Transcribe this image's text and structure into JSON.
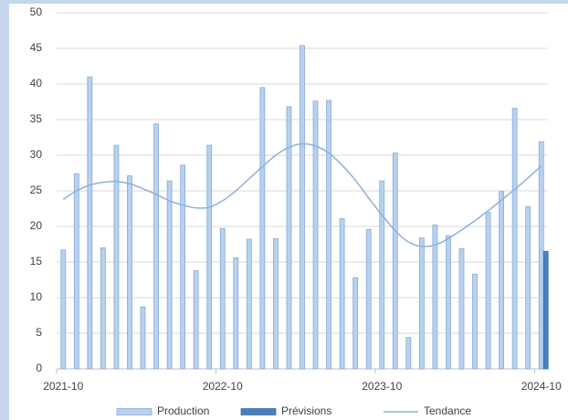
{
  "chart_data": {
    "type": "bar",
    "categories": [
      "2021-10",
      null,
      null,
      null,
      null,
      null,
      null,
      null,
      null,
      null,
      null,
      null,
      "2022-10",
      null,
      null,
      null,
      null,
      null,
      null,
      null,
      null,
      null,
      null,
      null,
      "2023-10",
      null,
      null,
      null,
      null,
      null,
      null,
      null,
      null,
      null,
      null,
      null,
      "2024-10"
    ],
    "series": [
      {
        "name": "Production",
        "color": "#b9d1ee",
        "stroke": "#86aad8",
        "kind": "bar",
        "values": [
          16.7,
          27.4,
          41,
          17,
          31.4,
          27.1,
          8.7,
          34.4,
          26.4,
          28.6,
          13.8,
          31.4,
          19.7,
          15.6,
          18.2,
          39.5,
          18.3,
          36.8,
          45.4,
          37.6,
          37.7,
          21.1,
          12.8,
          19.6,
          26.4,
          30.3,
          4.4,
          18.4,
          20.2,
          18.7,
          16.9,
          13.3,
          22.0,
          24.9,
          36.6,
          22.8,
          31.9
        ]
      },
      {
        "name": "Prévisions",
        "color": "#4a7fba",
        "stroke": "#3f71aa",
        "kind": "bar",
        "values": [
          null,
          null,
          null,
          null,
          null,
          null,
          null,
          null,
          null,
          null,
          null,
          null,
          null,
          null,
          null,
          null,
          null,
          null,
          null,
          null,
          null,
          null,
          null,
          null,
          null,
          null,
          null,
          null,
          null,
          null,
          null,
          null,
          null,
          null,
          null,
          null,
          16.5
        ]
      },
      {
        "name": "Tendance",
        "color": "#8fb0d8",
        "kind": "line",
        "values": [
          23.8,
          25,
          25.8,
          26.2,
          26.3,
          26,
          25.3,
          24.5,
          23.6,
          23,
          22.6,
          22.7,
          23.6,
          25,
          26.7,
          28.4,
          30,
          31.1,
          31.6,
          31.3,
          30.3,
          28.6,
          26.5,
          24,
          21.6,
          19.4,
          17.8,
          17.2,
          17.4,
          18.3,
          19.5,
          20.8,
          22.2,
          23.7,
          25.2,
          26.8,
          28.5
        ]
      }
    ],
    "ylim": [
      0,
      50
    ],
    "yticks": [
      0,
      5,
      10,
      15,
      20,
      25,
      30,
      35,
      40,
      45,
      50
    ],
    "grid": true,
    "legend": "bottom"
  }
}
